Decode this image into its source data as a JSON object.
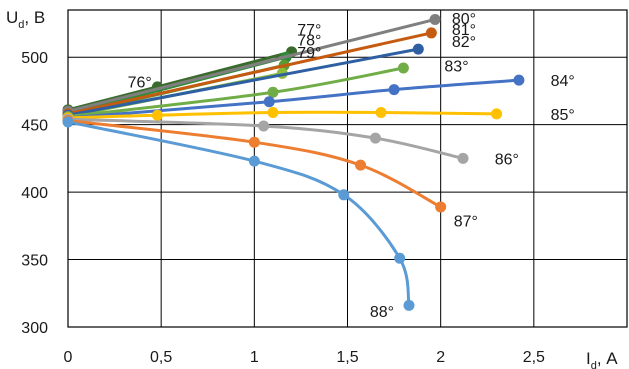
{
  "chart_data": {
    "type": "line",
    "title": "",
    "y_axis": {
      "label_main": "U",
      "label_sub": "d",
      "label_unit": ", В",
      "ticks": [
        "300",
        "350",
        "400",
        "450",
        "500"
      ],
      "ylim": [
        300,
        535
      ]
    },
    "x_axis": {
      "label_main": "I",
      "label_sub": "d",
      "label_unit": ", А",
      "ticks": [
        "0",
        "0,5",
        "1",
        "1,5",
        "2",
        "2,5"
      ],
      "xlim": [
        0,
        3
      ]
    },
    "grid": true,
    "legend": "none",
    "series": [
      {
        "name": "76°",
        "color": "#3a6b2c",
        "points": [
          [
            0,
            461
          ],
          [
            0.48,
            478
          ],
          [
            1.2,
            504
          ]
        ]
      },
      {
        "name": "77°",
        "color": "#2e8b3a",
        "points": [
          [
            0,
            458
          ],
          [
            1.17,
            500
          ]
        ]
      },
      {
        "name": "78°",
        "color": "#5b9a32",
        "points": [
          [
            0,
            457
          ],
          [
            1.16,
            494
          ]
        ]
      },
      {
        "name": "79°",
        "color": "#8abd3c",
        "points": [
          [
            0,
            456
          ],
          [
            1.15,
            488
          ]
        ]
      },
      {
        "name": "80°",
        "color": "#7f7f7f",
        "points": [
          [
            0,
            460
          ],
          [
            1.97,
            528
          ]
        ]
      },
      {
        "name": "81°",
        "color": "#c55a11",
        "points": [
          [
            0,
            458
          ],
          [
            1.95,
            518
          ]
        ]
      },
      {
        "name": "82°",
        "color": "#2e5fa3",
        "points": [
          [
            0,
            457
          ],
          [
            1.88,
            506
          ]
        ]
      },
      {
        "name": "83°",
        "color": "#70ad47",
        "points": [
          [
            0,
            456
          ],
          [
            1.1,
            474
          ],
          [
            1.8,
            492
          ]
        ]
      },
      {
        "name": "84°",
        "color": "#4472c4",
        "points": [
          [
            0,
            455
          ],
          [
            1.08,
            467
          ],
          [
            1.75,
            476
          ],
          [
            2.42,
            483
          ]
        ]
      },
      {
        "name": "85°",
        "color": "#ffc000",
        "points": [
          [
            0,
            455
          ],
          [
            0.48,
            457
          ],
          [
            1.1,
            459
          ],
          [
            1.68,
            459
          ],
          [
            2.3,
            458
          ]
        ]
      },
      {
        "name": "86°",
        "color": "#a5a5a5",
        "points": [
          [
            0,
            454
          ],
          [
            1.05,
            449
          ],
          [
            1.65,
            440
          ],
          [
            2.12,
            425
          ]
        ]
      },
      {
        "name": "87°",
        "color": "#ed7d31",
        "points": [
          [
            0,
            453
          ],
          [
            1.0,
            437
          ],
          [
            1.57,
            420
          ],
          [
            2.0,
            389
          ]
        ]
      },
      {
        "name": "88°",
        "color": "#5b9bd5",
        "points": [
          [
            0,
            452
          ],
          [
            1.0,
            423
          ],
          [
            1.48,
            398
          ],
          [
            1.78,
            351
          ],
          [
            1.83,
            316
          ]
        ]
      }
    ],
    "annotations": [
      {
        "text": "76°",
        "x": 0.32,
        "y": 482
      },
      {
        "text": "77°",
        "x": 1.23,
        "y": 521
      },
      {
        "text": "78°",
        "x": 1.23,
        "y": 513
      },
      {
        "text": "79°",
        "x": 1.23,
        "y": 504
      },
      {
        "text": "80°",
        "x": 2.06,
        "y": 529
      },
      {
        "text": "81°",
        "x": 2.06,
        "y": 521
      },
      {
        "text": "82°",
        "x": 2.06,
        "y": 512
      },
      {
        "text": "83°",
        "x": 2.02,
        "y": 494
      },
      {
        "text": "84°",
        "x": 2.59,
        "y": 483
      },
      {
        "text": "85°",
        "x": 2.59,
        "y": 458
      },
      {
        "text": "86°",
        "x": 2.29,
        "y": 425
      },
      {
        "text": "87°",
        "x": 2.07,
        "y": 379
      },
      {
        "text": "88°",
        "x": 1.62,
        "y": 312
      }
    ]
  }
}
